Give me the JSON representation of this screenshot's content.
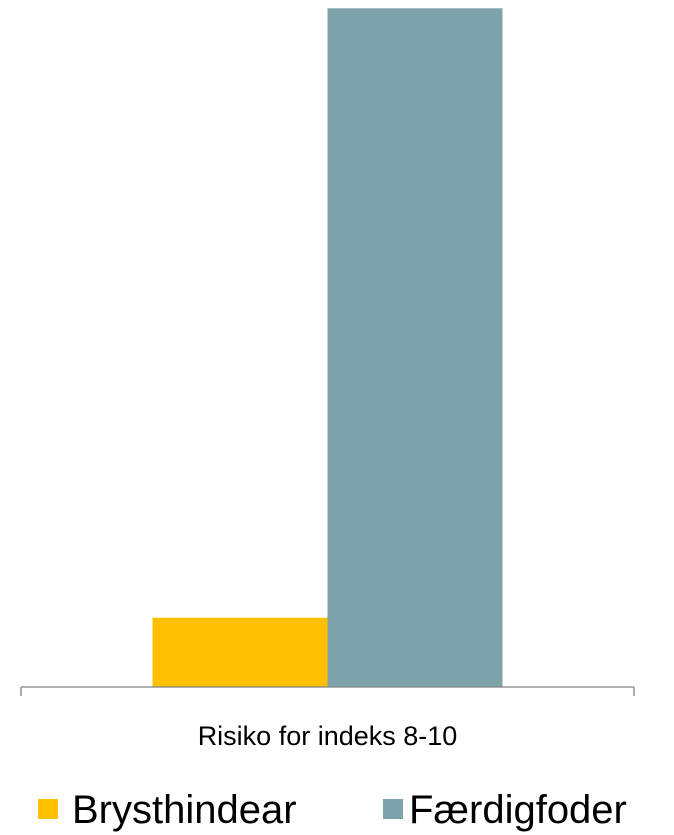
{
  "chart_data": {
    "type": "bar",
    "categories": [
      "Risiko for indeks 8-10"
    ],
    "series": [
      {
        "name": "Brysthindear",
        "values": [
          5.3
        ],
        "color": "#FFC000"
      },
      {
        "name": "Færdigfoder",
        "values": [
          51.9
        ],
        "color": "#7FA3AB"
      }
    ],
    "ylim": [
      0,
      52
    ],
    "grid": false,
    "legend_position": "bottom",
    "axis_color": "#808080"
  }
}
